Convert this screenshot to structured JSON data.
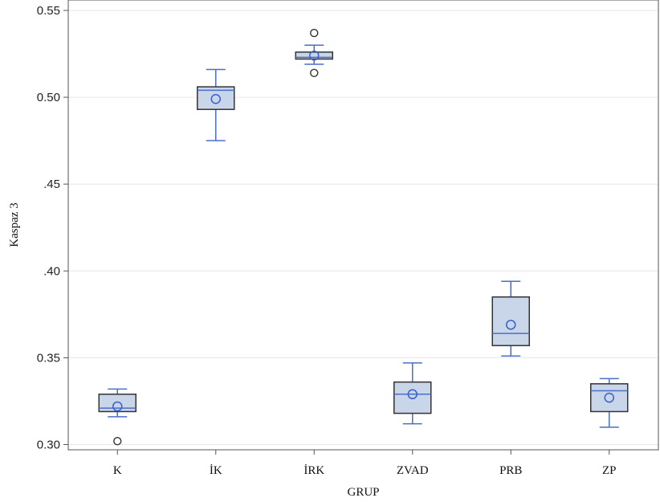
{
  "chart_data": {
    "type": "box",
    "title": "",
    "xlabel": "GRUP",
    "ylabel": "Kaspaz 3",
    "ylim": [
      0.297,
      0.556
    ],
    "yticks": [
      {
        "value": 0.3,
        "label": "0.30"
      },
      {
        "value": 0.35,
        "label": "0.35"
      },
      {
        "value": 0.4,
        "label": ".40"
      },
      {
        "value": 0.45,
        "label": ".45"
      },
      {
        "value": 0.5,
        "label": "0.50"
      },
      {
        "value": 0.55,
        "label": "0.55"
      }
    ],
    "grid": {
      "horizontal": true,
      "vertical": false
    },
    "colors": {
      "box_fill": "#c9d5e8",
      "box_edge": "#333333",
      "whisker": "#4a6fc8",
      "mean_marker": "#3a5fd0",
      "outlier": "#333333",
      "grid": "#e6e6e6"
    },
    "categories": [
      "K",
      "İK",
      "İRK",
      "ZVAD",
      "PRB",
      "ZP"
    ],
    "boxes": [
      {
        "category": "K",
        "whisker_low": 0.316,
        "q1": 0.319,
        "median": 0.321,
        "q3": 0.329,
        "whisker_high": 0.332,
        "mean": 0.322,
        "outliers": [
          0.302
        ]
      },
      {
        "category": "İK",
        "whisker_low": 0.475,
        "q1": 0.493,
        "median": 0.504,
        "q3": 0.506,
        "whisker_high": 0.516,
        "mean": 0.499,
        "outliers": []
      },
      {
        "category": "İRK",
        "whisker_low": 0.519,
        "q1": 0.522,
        "median": 0.523,
        "q3": 0.526,
        "whisker_high": 0.53,
        "mean": 0.524,
        "outliers": [
          0.537,
          0.514
        ]
      },
      {
        "category": "ZVAD",
        "whisker_low": 0.312,
        "q1": 0.318,
        "median": 0.329,
        "q3": 0.336,
        "whisker_high": 0.347,
        "mean": 0.329,
        "outliers": []
      },
      {
        "category": "PRB",
        "whisker_low": 0.351,
        "q1": 0.357,
        "median": 0.364,
        "q3": 0.385,
        "whisker_high": 0.394,
        "mean": 0.369,
        "outliers": []
      },
      {
        "category": "ZP",
        "whisker_low": 0.31,
        "q1": 0.319,
        "median": 0.331,
        "q3": 0.335,
        "whisker_high": 0.338,
        "mean": 0.327,
        "outliers": []
      }
    ]
  }
}
